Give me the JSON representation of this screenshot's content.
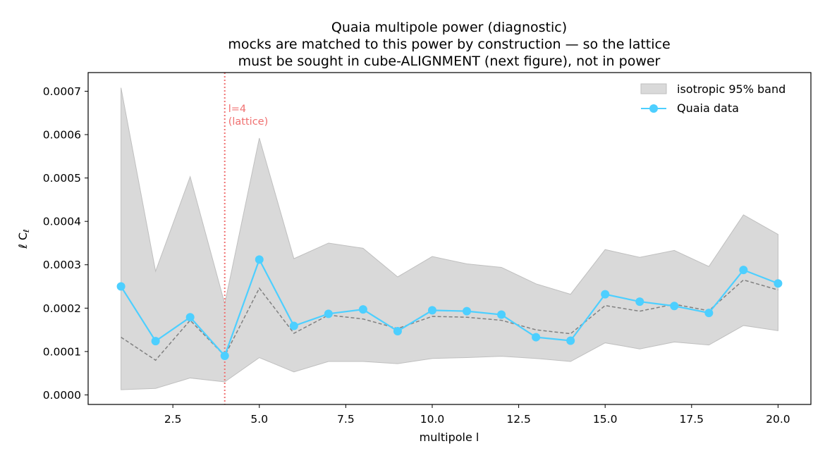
{
  "chart_data": {
    "type": "line",
    "title_lines": [
      "Quaia multipole power (diagnostic)",
      "mocks are matched to this power by construction — so the lattice",
      "must be sought in cube-ALIGNMENT (next figure), not in power"
    ],
    "xlabel": "multipole  l",
    "ylabel": "ℓ C",
    "ylabel_sub": "ℓ",
    "xlim": [
      0.05,
      20.95
    ],
    "ylim": [
      -2.2e-05,
      0.000743
    ],
    "x_ticks": [
      2.5,
      5.0,
      7.5,
      10.0,
      12.5,
      15.0,
      17.5,
      20.0
    ],
    "x_tick_labels": [
      "2.5",
      "5.0",
      "7.5",
      "10.0",
      "12.5",
      "15.0",
      "17.5",
      "20.0"
    ],
    "y_ticks": [
      0,
      0.0001,
      0.0002,
      0.0003,
      0.0004,
      0.0005,
      0.0006,
      0.0007
    ],
    "y_tick_labels": [
      "0.0000",
      "0.0001",
      "0.0002",
      "0.0003",
      "0.0004",
      "0.0005",
      "0.0006",
      "0.0007"
    ],
    "x": [
      1,
      2,
      3,
      4,
      5,
      6,
      7,
      8,
      9,
      10,
      11,
      12,
      13,
      14,
      15,
      16,
      17,
      18,
      19,
      20
    ],
    "band": {
      "name": "isotropic 95% band",
      "upper": [
        0.000708,
        0.000285,
        0.000503,
        0.00021,
        0.000592,
        0.000314,
        0.00035,
        0.000338,
        0.000272,
        0.000319,
        0.000302,
        0.000294,
        0.000256,
        0.000232,
        0.000335,
        0.000317,
        0.000333,
        0.000296,
        0.000415,
        0.00037
      ],
      "lower": [
        1.2e-05,
        1.5e-05,
        3.9e-05,
        3e-05,
        8.6e-05,
        5.3e-05,
        7.7e-05,
        7.7e-05,
        7.2e-05,
        8.4e-05,
        8.6e-05,
        8.9e-05,
        8.4e-05,
        7.7e-05,
        0.00012,
        0.000106,
        0.000122,
        0.000115,
        0.00016,
        0.000148
      ],
      "color": "#d9d9d9",
      "edge_color": "#bfbfbf"
    },
    "median": {
      "values": [
        0.000133,
        8e-05,
        0.000172,
        9e-05,
        0.000246,
        0.000142,
        0.000184,
        0.000175,
        0.000153,
        0.000181,
        0.000179,
        0.000172,
        0.00015,
        0.000141,
        0.000206,
        0.000193,
        0.000209,
        0.000194,
        0.000265,
        0.000242
      ],
      "color": "#808080"
    },
    "series": [
      {
        "name": "Quaia data",
        "values": [
          0.00025,
          0.000124,
          0.000179,
          9e-05,
          0.000312,
          0.000159,
          0.000187,
          0.000197,
          0.000147,
          0.000195,
          0.000193,
          0.000185,
          0.000133,
          0.000125,
          0.000232,
          0.000215,
          0.000205,
          0.000189,
          0.000288,
          0.000257
        ],
        "color": "#4dcfff"
      }
    ],
    "vline": {
      "x": 4,
      "color": "#f07070",
      "label_line1": "l=4",
      "label_line2": "(lattice)"
    },
    "legend": {
      "position": "top-right"
    },
    "grid": false
  }
}
